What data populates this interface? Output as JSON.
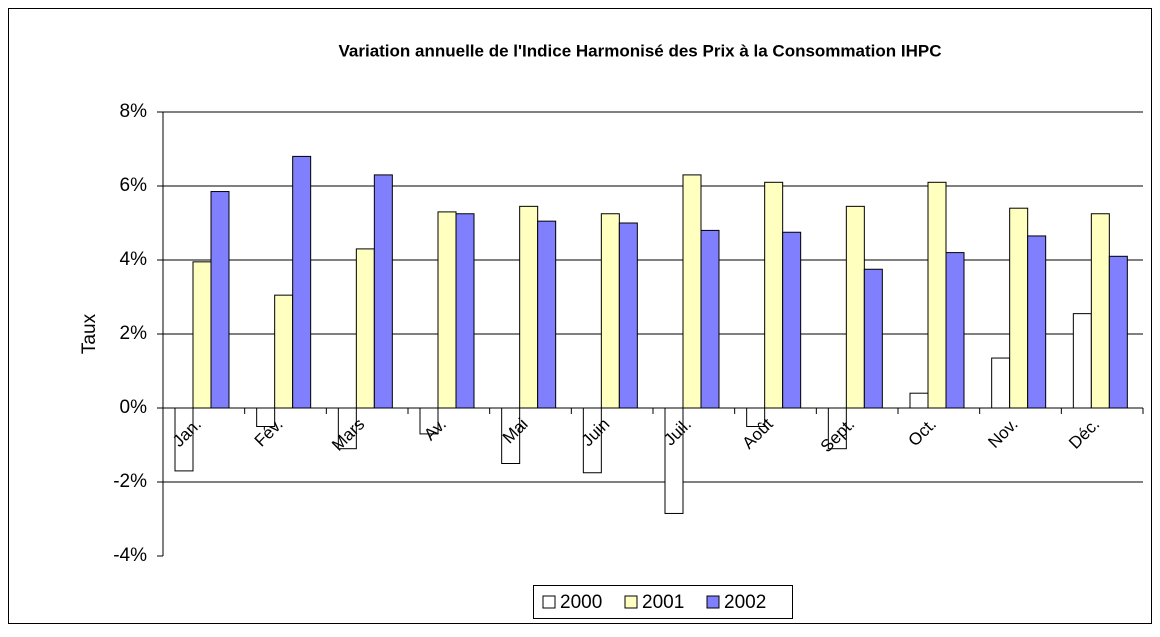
{
  "chart_data": {
    "type": "bar",
    "title": "Variation annuelle de l'Indice Harmonisé des Prix à la Consommation IHPC",
    "y_label": "Taux",
    "categories": [
      "Jan.",
      "Fév.",
      "Mars",
      "Av.",
      "Mai",
      "Juin",
      "Juil.",
      "Août",
      "Sept.",
      "Oct.",
      "Nov.",
      "Déc."
    ],
    "series": [
      {
        "name": "2000",
        "color": "#ffffff",
        "values": [
          -1.7,
          -0.5,
          -1.1,
          -0.7,
          -1.5,
          -1.75,
          -2.85,
          -0.5,
          -1.1,
          0.4,
          1.35,
          2.55
        ]
      },
      {
        "name": "2001",
        "color": "#ffffc0",
        "values": [
          3.95,
          3.05,
          4.3,
          5.3,
          5.45,
          5.25,
          6.3,
          6.1,
          5.45,
          6.1,
          5.4,
          5.25
        ]
      },
      {
        "name": "2002",
        "color": "#8080ff",
        "values": [
          5.85,
          6.8,
          6.3,
          5.25,
          5.05,
          5.0,
          4.8,
          4.75,
          3.75,
          4.2,
          4.65,
          4.1
        ]
      }
    ],
    "ylim": [
      -4,
      8
    ],
    "yticks": [
      {
        "value": -4,
        "label": "-4%"
      },
      {
        "value": -2,
        "label": "-2%"
      },
      {
        "value": 0,
        "label": "0%"
      },
      {
        "value": 2,
        "label": "2%"
      },
      {
        "value": 4,
        "label": "4%"
      },
      {
        "value": 6,
        "label": "6%"
      },
      {
        "value": 8,
        "label": "8%"
      }
    ],
    "grid": true,
    "legend": "bottom"
  }
}
